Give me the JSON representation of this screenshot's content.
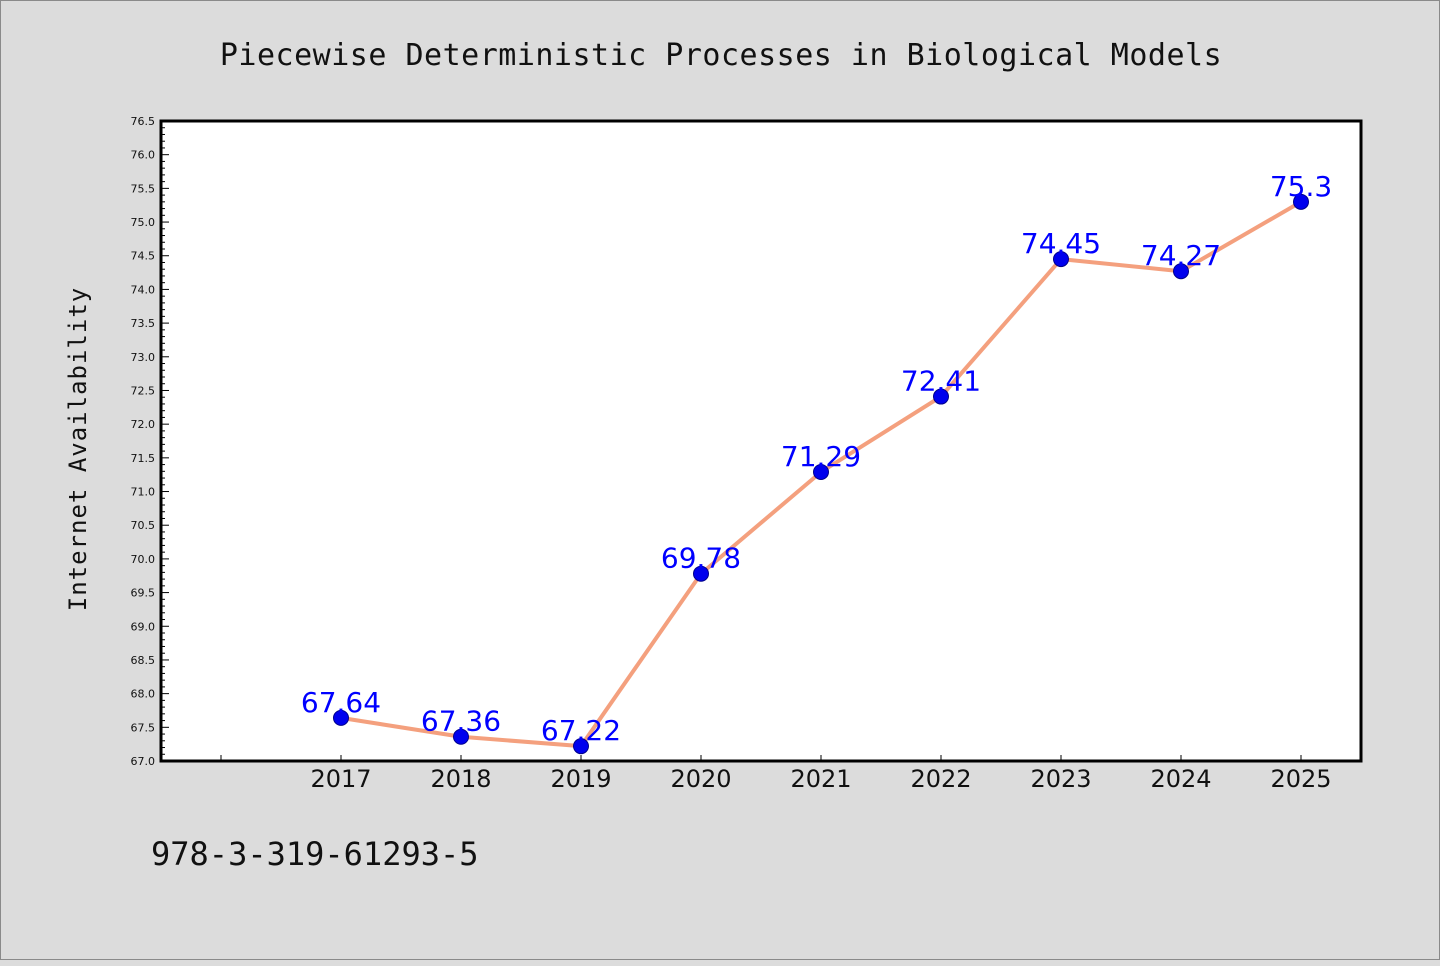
{
  "chart_data": {
    "type": "line",
    "title": "Piecewise Deterministic Processes in Biological Models",
    "xlabel": "",
    "ylabel": "Internet Availability",
    "categories": [
      "2017",
      "2018",
      "2019",
      "2020",
      "2021",
      "2022",
      "2023",
      "2024",
      "2025"
    ],
    "series": [
      {
        "values": [
          67.64,
          67.36,
          67.22,
          69.78,
          71.29,
          72.41,
          74.45,
          74.27,
          75.3
        ],
        "labels": [
          "67.64",
          "67.36",
          "67.22",
          "69.78",
          "71.29",
          "72.41",
          "74.45",
          "74.27",
          "75.3"
        ]
      }
    ],
    "ylim": [
      67.0,
      76.5
    ],
    "yticks": [
      "67.0",
      "67.5",
      "68.0",
      "68.5",
      "69.0",
      "69.5",
      "70.0",
      "70.5",
      "71.0",
      "71.5",
      "72.0",
      "72.5",
      "73.0",
      "73.5",
      "74.0",
      "74.5",
      "75.0",
      "75.5",
      "76.0",
      "76.5"
    ],
    "grid": false,
    "legend": "none",
    "colors": {
      "line": "#f4a07e",
      "marker": "#0000ee",
      "data_label": "#0000ff",
      "background": "#dcdcdc",
      "plot_area": "#ffffff"
    }
  },
  "footer_text": "978-3-319-61293-5"
}
